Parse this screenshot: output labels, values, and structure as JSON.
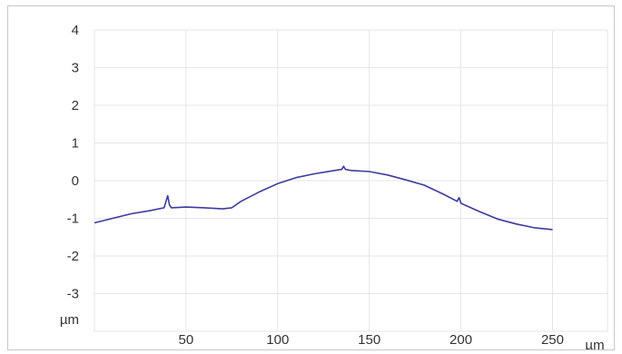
{
  "chart_data": {
    "type": "line",
    "xlabel": "µm",
    "ylabel": "µm",
    "xlim": [
      0,
      280
    ],
    "ylim": [
      -4,
      4
    ],
    "x_ticks": [
      50,
      100,
      150,
      200,
      250
    ],
    "y_ticks": [
      4,
      3,
      2,
      1,
      0,
      -1,
      -2,
      -3
    ],
    "grid": true,
    "legend": "none",
    "series_color": "#3b3b9e",
    "series": [
      {
        "x": [
          0,
          10,
          20,
          30,
          38,
          40,
          41,
          42,
          50,
          60,
          70,
          75,
          80,
          90,
          100,
          110,
          120,
          130,
          135,
          136,
          137,
          140,
          150,
          160,
          170,
          180,
          190,
          198,
          199,
          200,
          210,
          220,
          230,
          240,
          250
        ],
        "y": [
          -1.12,
          -1.0,
          -0.88,
          -0.8,
          -0.72,
          -0.4,
          -0.65,
          -0.72,
          -0.7,
          -0.72,
          -0.75,
          -0.72,
          -0.55,
          -0.3,
          -0.08,
          0.08,
          0.18,
          0.26,
          0.3,
          0.38,
          0.3,
          0.27,
          0.24,
          0.15,
          0.02,
          -0.12,
          -0.35,
          -0.55,
          -0.45,
          -0.6,
          -0.82,
          -1.02,
          -1.15,
          -1.25,
          -1.3
        ]
      }
    ]
  }
}
